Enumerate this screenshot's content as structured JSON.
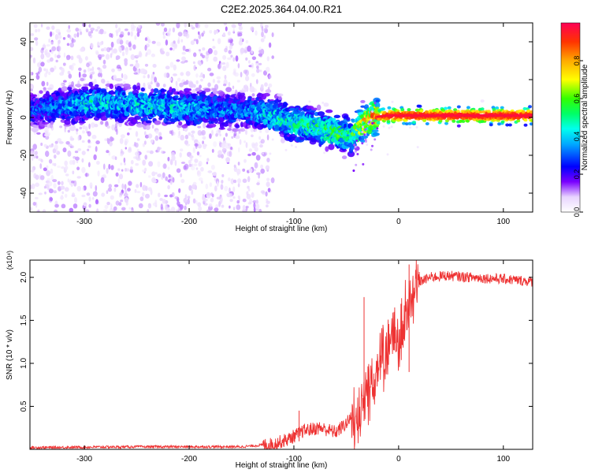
{
  "title": "C2E2.2025.364.04.00.R21",
  "colors": {
    "snr_line": "#ee3333",
    "colormap": [
      "#ffffff",
      "#e8d4ff",
      "#b46dff",
      "#7a00ff",
      "#3a00ff",
      "#0000ff",
      "#00aaff",
      "#00ffee",
      "#00ff66",
      "#33ff00",
      "#ffff00",
      "#ffaa00",
      "#ff3300",
      "#ff0044"
    ]
  },
  "chart_data": [
    {
      "type": "heatmap",
      "xlabel": "Height of straight line (km)",
      "ylabel": "Frequency (Hz)",
      "xlim": [
        -352,
        128
      ],
      "ylim": [
        -50,
        50
      ],
      "x_ticks": [
        -300,
        -200,
        -100,
        0,
        100
      ],
      "y_ticks": [
        -40,
        -20,
        0,
        20,
        40
      ],
      "colorbar": {
        "label": "Normalized spectral amplitude",
        "range": [
          0,
          1
        ],
        "ticks": [
          "0.0",
          "0.2",
          "0.4",
          "0.6",
          "0.8"
        ],
        "tick_values": [
          0.0,
          0.2,
          0.4,
          0.6,
          0.8
        ]
      },
      "ridge": [
        {
          "x": -350,
          "y": 4,
          "amp": 0.3
        },
        {
          "x": -320,
          "y": 6,
          "amp": 0.35
        },
        {
          "x": -290,
          "y": 8,
          "amp": 0.45
        },
        {
          "x": -260,
          "y": 7,
          "amp": 0.4
        },
        {
          "x": -230,
          "y": 6,
          "amp": 0.45
        },
        {
          "x": -200,
          "y": 5,
          "amp": 0.4
        },
        {
          "x": -170,
          "y": 4,
          "amp": 0.35
        },
        {
          "x": -140,
          "y": 3,
          "amp": 0.35
        },
        {
          "x": -120,
          "y": 1,
          "amp": 0.45
        },
        {
          "x": -100,
          "y": -3,
          "amp": 0.5
        },
        {
          "x": -80,
          "y": -5,
          "amp": 0.5
        },
        {
          "x": -60,
          "y": -8,
          "amp": 0.55
        },
        {
          "x": -45,
          "y": -10,
          "amp": 0.5
        },
        {
          "x": -35,
          "y": -4,
          "amp": 0.7
        },
        {
          "x": -25,
          "y": 0,
          "amp": 0.8
        },
        {
          "x": -10,
          "y": 1,
          "amp": 0.95
        },
        {
          "x": 0,
          "y": 1,
          "amp": 0.95
        },
        {
          "x": 20,
          "y": 1,
          "amp": 0.97
        },
        {
          "x": 60,
          "y": 1,
          "amp": 0.97
        },
        {
          "x": 128,
          "y": 1,
          "amp": 0.97
        }
      ],
      "noise_region_x": [
        -352,
        -140
      ]
    },
    {
      "type": "line",
      "xlabel": "Height of straight line (km)",
      "ylabel": "SNR (10 * v/v)",
      "y_multiplier": "(x10⁴)",
      "xlim": [
        -352,
        128
      ],
      "ylim": [
        0,
        2.2
      ],
      "x_ticks": [
        -300,
        -200,
        -100,
        0,
        100
      ],
      "y_ticks": [
        "0.5",
        "1.0",
        "1.5",
        "2.0"
      ],
      "y_tick_values": [
        0.5,
        1.0,
        1.5,
        2.0
      ],
      "envelope": {
        "x": [
          -352,
          -250,
          -150,
          -120,
          -105,
          -90,
          -75,
          -60,
          -50,
          -40,
          -30,
          -20,
          -10,
          0,
          5,
          12,
          20,
          30,
          45,
          70,
          100,
          128
        ],
        "y": [
          0.02,
          0.03,
          0.03,
          0.06,
          0.12,
          0.22,
          0.25,
          0.2,
          0.3,
          0.45,
          0.75,
          1.0,
          1.2,
          1.4,
          1.55,
          1.9,
          1.95,
          2.0,
          2.02,
          2.0,
          1.98,
          1.95
        ]
      },
      "peaks": [
        {
          "x": -33,
          "y": 1.77
        },
        {
          "x": 10,
          "y": 2.15
        },
        {
          "x": -95,
          "y": 0.45
        }
      ]
    }
  ]
}
